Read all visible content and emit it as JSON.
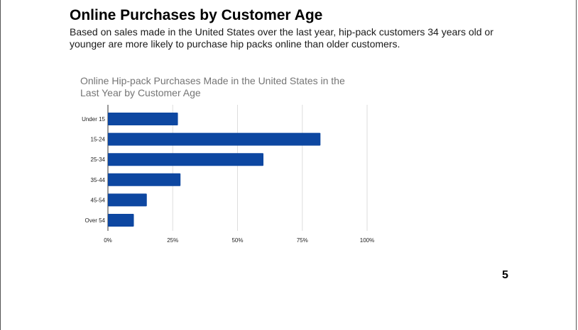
{
  "slide": {
    "title": "Online Purchases by Customer Age",
    "subtitle": "Based on sales made in the United States over the last year, hip-pack customers 34 years old or younger are more likely to purchase hip packs online than older customers.",
    "page_number": "5"
  },
  "chart_data": {
    "type": "bar",
    "orientation": "horizontal",
    "title_lines": [
      "Online Hip-pack Purchases Made in the United States in the",
      "Last Year by Customer Age"
    ],
    "categories": [
      "Under 15",
      "15-24",
      "25-34",
      "35-44",
      "45-54",
      "Over 54"
    ],
    "values": [
      27,
      82,
      60,
      28,
      15,
      10
    ],
    "xlim": [
      0,
      100
    ],
    "ticks": [
      0,
      25,
      50,
      75,
      100
    ],
    "tick_labels": [
      "0%",
      "25%",
      "50%",
      "75%",
      "100%"
    ],
    "grid": true,
    "legend": "none",
    "bar_color": "#0d47a1",
    "grid_color": "#dddddd"
  }
}
